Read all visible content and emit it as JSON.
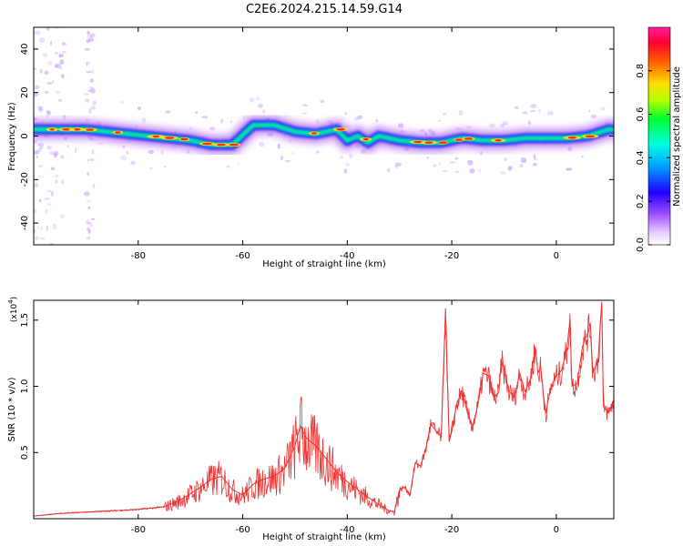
{
  "figure": {
    "title": "C2E6.2024.215.14.59.G14"
  },
  "colorbar": {
    "label": "Normalized spectral amplitude",
    "ticks": [
      "0.0",
      "0.2",
      "0.4",
      "0.6",
      "0.8"
    ],
    "tick_values": [
      0.0,
      0.2,
      0.4,
      0.6,
      0.8
    ],
    "range": [
      0,
      1
    ]
  },
  "chart_data": [
    {
      "type": "heatmap",
      "xlabel": "Height of straight line (km)",
      "ylabel": "Frequency (Hz)",
      "xlim": [
        -100,
        11
      ],
      "ylim": [
        -50,
        50
      ],
      "xticks": [
        -80,
        -60,
        -40,
        -20,
        0
      ],
      "yticks": [
        -40,
        -20,
        0,
        20,
        40
      ],
      "ridge": {
        "x": [
          -98,
          -94,
          -90,
          -86,
          -82,
          -78,
          -74,
          -70,
          -66,
          -62,
          -58,
          -54,
          -50,
          -46,
          -42,
          -40,
          -38,
          -36,
          -34,
          -30,
          -26,
          -22,
          -18,
          -14,
          -10,
          -6,
          -2,
          2,
          6,
          10
        ],
        "y": [
          3,
          3,
          3,
          2,
          1,
          0,
          -1,
          -2,
          -4,
          -4,
          5,
          5,
          2,
          1,
          3,
          -2,
          0,
          -3,
          0,
          -2,
          -3,
          -3,
          -1,
          -2,
          -2,
          -1,
          -1,
          -1,
          0,
          3
        ]
      },
      "grid": false
    },
    {
      "type": "line",
      "xlabel": "Height of straight line (km)",
      "ylabel": "SNR (10 * v/v)",
      "y_multiplier": "(x10^4)",
      "xlim": [
        -100,
        11
      ],
      "ylim": [
        0,
        1.65
      ],
      "xticks": [
        -80,
        -60,
        -40,
        -20,
        0
      ],
      "yticks": [
        0.5,
        1.0,
        1.5
      ],
      "ytick_labels": [
        "0.5",
        "1.0",
        "1.5"
      ],
      "color": "#ee3333",
      "series": [
        {
          "x": [
            -100,
            -95,
            -90,
            -85,
            -80,
            -75,
            -72,
            -70,
            -68,
            -66,
            -64,
            -62,
            -60,
            -58,
            -56,
            -54,
            -52,
            -50,
            -49,
            -48,
            -47,
            -46,
            -44,
            -42,
            -40,
            -38,
            -36,
            -34,
            -32,
            -31,
            -30,
            -29,
            -28,
            -27,
            -26,
            -25,
            -24,
            -23,
            -22,
            -21.2,
            -20.5,
            -20,
            -19,
            -18,
            -17,
            -16,
            -15,
            -14,
            -13,
            -12,
            -11,
            -10.5,
            -10,
            -9,
            -8,
            -7,
            -6,
            -5,
            -4,
            -3.5,
            -3,
            -2.5,
            -2,
            -1,
            0,
            1,
            2,
            2.6,
            3,
            4,
            5,
            6,
            6.5,
            7,
            8,
            8.7,
            9,
            10,
            11
          ],
          "y": [
            0.02,
            0.04,
            0.05,
            0.06,
            0.07,
            0.09,
            0.14,
            0.19,
            0.24,
            0.3,
            0.32,
            0.22,
            0.18,
            0.26,
            0.3,
            0.32,
            0.38,
            0.55,
            0.7,
            0.62,
            0.58,
            0.55,
            0.45,
            0.35,
            0.28,
            0.22,
            0.16,
            0.11,
            0.06,
            0.05,
            0.22,
            0.24,
            0.18,
            0.42,
            0.4,
            0.52,
            0.72,
            0.66,
            0.62,
            1.59,
            0.58,
            0.66,
            0.88,
            0.96,
            0.8,
            0.7,
            0.86,
            1.1,
            1.08,
            0.92,
            0.95,
            1.2,
            1.12,
            0.96,
            0.92,
            1.1,
            0.96,
            1.05,
            1.3,
            1.1,
            1.15,
            0.95,
            0.8,
            1.0,
            1.08,
            1.12,
            1.28,
            1.5,
            1.0,
            1.02,
            1.3,
            1.4,
            1.48,
            1.1,
            1.2,
            1.64,
            0.85,
            0.8,
            0.9
          ]
        }
      ],
      "grid": false
    }
  ]
}
